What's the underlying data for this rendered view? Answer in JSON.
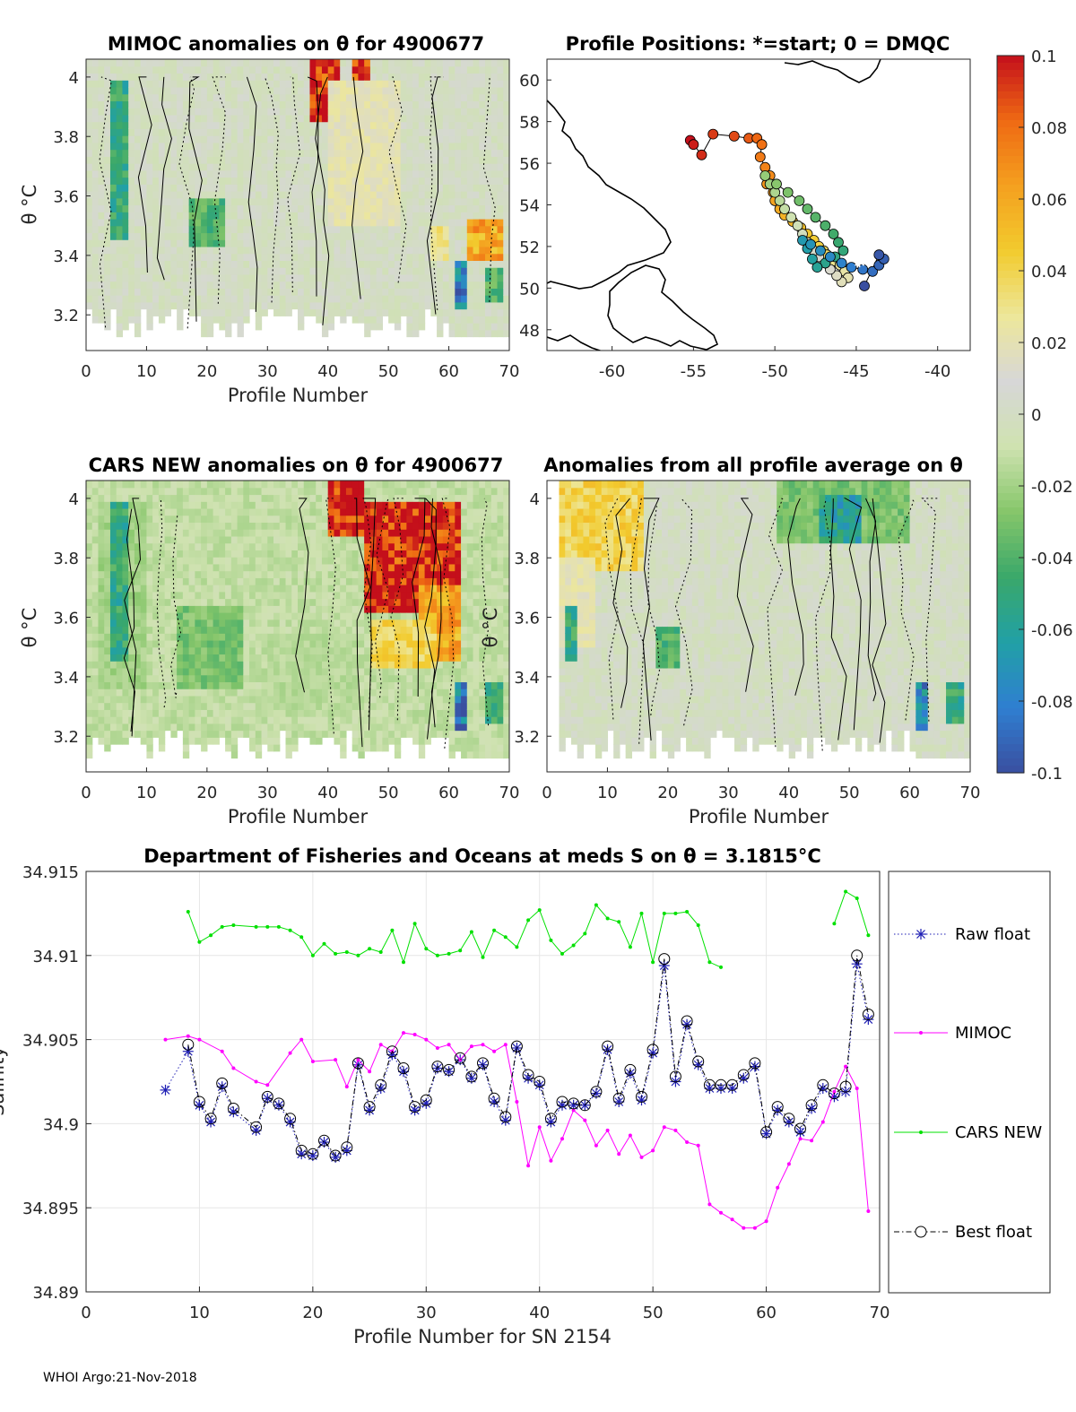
{
  "footer": "WHOI Argo:21-Nov-2018",
  "colorbar": {
    "ticks": [
      "0.1",
      "0.08",
      "0.06",
      "0.04",
      "0.02",
      "0",
      "-0.02",
      "-0.04",
      "-0.06",
      "-0.08",
      "-0.1"
    ],
    "range": [
      -0.1,
      0.1
    ],
    "colors": [
      "#3a4fa0",
      "#2f7fd1",
      "#21a0a6",
      "#3aa86a",
      "#86c66a",
      "#cfe2b0",
      "#d7d7d7",
      "#ede79a",
      "#f2cb2e",
      "#f4a01f",
      "#ef6a13",
      "#c40f1b"
    ]
  },
  "chart_data": [
    {
      "id": "mimoc",
      "type": "heatmap",
      "title": "MIMOC anomalies on θ  for 4900677",
      "xlabel": "Profile Number",
      "ylabel": "θ °C",
      "xlim": [
        0,
        70
      ],
      "ylim": [
        3.08,
        4.06
      ],
      "xticks": [
        "0",
        "10",
        "20",
        "30",
        "40",
        "50",
        "60",
        "70"
      ],
      "yticks": [
        "3.2",
        "3.4",
        "3.6",
        "3.8",
        "4"
      ],
      "blobs": [
        {
          "x": [
            4,
            7
          ],
          "y": [
            3.45,
            4.0
          ],
          "v": -0.05
        },
        {
          "x": [
            17,
            23
          ],
          "y": [
            3.42,
            3.6
          ],
          "v": -0.04
        },
        {
          "x": [
            37,
            42
          ],
          "y": [
            3.85,
            4.05
          ],
          "v": 0.1
        },
        {
          "x": [
            44,
            47
          ],
          "y": [
            3.9,
            4.05
          ],
          "v": 0.1
        },
        {
          "x": [
            40,
            52
          ],
          "y": [
            3.5,
            4.0
          ],
          "v": 0.02
        },
        {
          "x": [
            57,
            60
          ],
          "y": [
            3.38,
            3.5
          ],
          "v": 0.03
        },
        {
          "x": [
            63,
            69
          ],
          "y": [
            3.38,
            3.52
          ],
          "v": 0.06
        },
        {
          "x": [
            61,
            63
          ],
          "y": [
            3.22,
            3.38
          ],
          "v": -0.08
        },
        {
          "x": [
            66,
            69
          ],
          "y": [
            3.25,
            3.35
          ],
          "v": -0.04
        }
      ]
    },
    {
      "id": "map",
      "type": "scatter",
      "title": "Profile Positions: *=start; 0 = DMQC",
      "xlim": [
        -64,
        -38
      ],
      "ylim": [
        47,
        61
      ],
      "xticks": [
        "-60",
        "-55",
        "-50",
        "-45",
        "-40"
      ],
      "yticks": [
        "48",
        "50",
        "52",
        "54",
        "56",
        "58",
        "60"
      ],
      "lon": [
        -55.2,
        -55.0,
        -54.5,
        -53.8,
        -52.5,
        -51.6,
        -51.1,
        -50.8,
        -50.9,
        -50.6,
        -50.3,
        -50.5,
        -50.1,
        -50.0,
        -49.7,
        -49.4,
        -48.9,
        -48.4,
        -48.0,
        -47.6,
        -47.3,
        -47.0,
        -46.8,
        -46.6,
        -46.4,
        -46.0,
        -45.7,
        -45.5,
        -45.9,
        -46.2,
        -46.6,
        -46.9,
        -47.3,
        -47.6,
        -48.0,
        -48.3,
        -48.6,
        -49.0,
        -49.4,
        -49.7,
        -50.0,
        -50.3,
        -50.6,
        -49.9,
        -49.2,
        -48.5,
        -48.0,
        -47.5,
        -46.9,
        -46.4,
        -46.1,
        -45.8,
        -46.3,
        -46.9,
        -47.4,
        -47.7,
        -48.0,
        -48.3,
        -47.8,
        -47.2,
        -46.6,
        -45.9,
        -45.3,
        -44.6,
        -44.0,
        -43.6,
        -43.3,
        -43.6,
        -44.5
      ],
      "lat": [
        57.1,
        56.9,
        56.4,
        57.4,
        57.3,
        57.2,
        57.2,
        56.9,
        56.3,
        55.8,
        55.4,
        55.0,
        54.6,
        54.2,
        53.8,
        53.5,
        53.2,
        52.9,
        52.6,
        52.3,
        52.0,
        51.8,
        51.6,
        51.4,
        51.3,
        51.1,
        50.8,
        50.5,
        50.3,
        50.6,
        50.9,
        51.2,
        51.5,
        51.8,
        52.2,
        52.6,
        53.0,
        53.4,
        53.8,
        54.2,
        54.6,
        55.0,
        55.4,
        55.0,
        54.6,
        54.2,
        53.8,
        53.4,
        53.0,
        52.6,
        52.2,
        51.8,
        51.5,
        51.2,
        51.0,
        51.4,
        51.9,
        52.3,
        52.1,
        51.8,
        51.5,
        51.2,
        51.0,
        50.9,
        50.8,
        51.1,
        51.4,
        51.6,
        50.1
      ],
      "start": {
        "lon": -44.8,
        "lat": 51.3
      }
    },
    {
      "id": "cars",
      "type": "heatmap",
      "title": "CARS NEW anomalies on θ for 4900677",
      "xlabel": "Profile Number",
      "ylabel": "θ °C",
      "xlim": [
        0,
        70
      ],
      "ylim": [
        3.08,
        4.06
      ],
      "xticks": [
        "0",
        "10",
        "20",
        "30",
        "40",
        "50",
        "60",
        "70"
      ],
      "yticks": [
        "3.2",
        "3.4",
        "3.6",
        "3.8",
        "4"
      ],
      "blobs": [
        {
          "x": [
            2,
            10
          ],
          "y": [
            3.35,
            4.0
          ],
          "v": -0.02
        },
        {
          "x": [
            4,
            7
          ],
          "y": [
            3.45,
            4.0
          ],
          "v": -0.05
        },
        {
          "x": [
            15,
            26
          ],
          "y": [
            3.35,
            3.65
          ],
          "v": -0.03
        },
        {
          "x": [
            40,
            46
          ],
          "y": [
            3.88,
            4.06
          ],
          "v": 0.1
        },
        {
          "x": [
            46,
            62
          ],
          "y": [
            3.62,
            4.0
          ],
          "v": 0.1
        },
        {
          "x": [
            55,
            62
          ],
          "y": [
            3.45,
            3.72
          ],
          "v": 0.06
        },
        {
          "x": [
            47,
            58
          ],
          "y": [
            3.42,
            3.6
          ],
          "v": 0.04
        },
        {
          "x": [
            61,
            63
          ],
          "y": [
            3.22,
            3.38
          ],
          "v": -0.08
        },
        {
          "x": [
            66,
            69
          ],
          "y": [
            3.25,
            3.38
          ],
          "v": -0.05
        },
        {
          "x": [
            30,
            45
          ],
          "y": [
            3.3,
            3.55
          ],
          "v": -0.015
        }
      ]
    },
    {
      "id": "avg",
      "type": "heatmap",
      "title": "Anomalies from all profile average on θ",
      "xlabel": "Profile Number",
      "ylabel": "θ °C",
      "xlim": [
        0,
        70
      ],
      "ylim": [
        3.08,
        4.06
      ],
      "xticks": [
        "0",
        "10",
        "20",
        "30",
        "40",
        "50",
        "60",
        "70"
      ],
      "yticks": [
        "3.2",
        "3.4",
        "3.6",
        "3.8",
        "4"
      ],
      "blobs": [
        {
          "x": [
            2,
            16
          ],
          "y": [
            3.75,
            4.06
          ],
          "v": 0.04
        },
        {
          "x": [
            2,
            8
          ],
          "y": [
            3.5,
            3.8
          ],
          "v": 0.02
        },
        {
          "x": [
            3,
            5
          ],
          "y": [
            3.45,
            3.65
          ],
          "v": -0.05
        },
        {
          "x": [
            18,
            22
          ],
          "y": [
            3.42,
            3.58
          ],
          "v": -0.04
        },
        {
          "x": [
            38,
            60
          ],
          "y": [
            3.85,
            4.05
          ],
          "v": -0.03
        },
        {
          "x": [
            45,
            52
          ],
          "y": [
            3.85,
            4.02
          ],
          "v": -0.06
        },
        {
          "x": [
            61,
            63
          ],
          "y": [
            3.22,
            3.38
          ],
          "v": -0.08
        },
        {
          "x": [
            66,
            69
          ],
          "y": [
            3.25,
            3.38
          ],
          "v": -0.05
        }
      ]
    },
    {
      "id": "salinity",
      "type": "line",
      "title": "Department of Fisheries and Oceans at meds S on θ = 3.1815°C",
      "xlabel": "Profile Number for SN 2154",
      "ylabel": "Salinity",
      "xlim": [
        0,
        70
      ],
      "ylim": [
        34.89,
        34.915
      ],
      "xticks": [
        "0",
        "10",
        "20",
        "30",
        "40",
        "50",
        "60",
        "70"
      ],
      "yticks": [
        "34.89",
        "34.895",
        "34.9",
        "34.905",
        "34.91",
        "34.915"
      ],
      "series": [
        {
          "name": "Raw float",
          "color": "#1e1eb4",
          "x": [
            7,
            9,
            10,
            11,
            12,
            13,
            15,
            16,
            17,
            18,
            19,
            20,
            21,
            22,
            23,
            24,
            25,
            26,
            27,
            28,
            29,
            30,
            31,
            32,
            33,
            34,
            35,
            36,
            37,
            38,
            39,
            40,
            41,
            42,
            43,
            44,
            45,
            46,
            47,
            48,
            49,
            50,
            51,
            52,
            53,
            54,
            55,
            56,
            57,
            58,
            59,
            60,
            61,
            62,
            63,
            64,
            65,
            66,
            67,
            68,
            69
          ],
          "y": [
            34.902,
            34.9043,
            34.9011,
            34.9001,
            34.9022,
            34.9007,
            34.8996,
            34.9015,
            34.9011,
            34.9001,
            34.8982,
            34.8981,
            34.8989,
            34.898,
            34.8984,
            34.9035,
            34.9008,
            34.9021,
            34.9041,
            34.9031,
            34.9008,
            34.9012,
            34.9033,
            34.9031,
            34.9038,
            34.9027,
            34.9035,
            34.9013,
            34.9002,
            34.9045,
            34.9027,
            34.9023,
            34.9001,
            34.9011,
            34.9011,
            34.9011,
            34.9018,
            34.9044,
            34.9013,
            34.903,
            34.9014,
            34.9042,
            34.9094,
            34.9025,
            34.9059,
            34.9035,
            34.9021,
            34.9021,
            34.9021,
            34.9027,
            34.9034,
            34.8994,
            34.9008,
            34.9001,
            34.8995,
            34.9009,
            34.9021,
            34.9016,
            34.9019,
            34.9095,
            34.9062
          ]
        },
        {
          "name": "MIMOC",
          "color": "#ff00ff",
          "x": [
            7,
            9,
            10,
            12,
            13,
            15,
            16,
            18,
            19,
            20,
            22,
            23,
            24,
            25,
            26,
            27,
            28,
            29,
            30,
            31,
            32,
            33,
            34,
            35,
            36,
            37,
            38,
            39,
            40,
            41,
            42,
            43,
            44,
            45,
            46,
            47,
            48,
            49,
            50,
            51,
            52,
            53,
            54,
            55,
            56,
            57,
            58,
            59,
            60,
            61,
            62,
            63,
            64,
            65,
            66,
            67,
            68,
            69
          ],
          "y": [
            34.905,
            34.9052,
            34.905,
            34.9043,
            34.9033,
            34.9025,
            34.9023,
            34.9042,
            34.905,
            34.9037,
            34.9038,
            34.9022,
            34.9038,
            34.9031,
            34.9047,
            34.9043,
            34.9054,
            34.9053,
            34.905,
            34.9045,
            34.9047,
            34.9038,
            34.9046,
            34.9047,
            34.9043,
            34.9047,
            34.9013,
            34.8975,
            34.8998,
            34.8978,
            34.8991,
            34.9008,
            34.9002,
            34.8987,
            34.8996,
            34.8982,
            34.8993,
            34.898,
            34.8984,
            34.8998,
            34.8996,
            34.8989,
            34.8987,
            34.8952,
            34.8947,
            34.8943,
            34.8938,
            34.8938,
            34.8942,
            34.8962,
            34.8976,
            34.8991,
            34.899,
            34.9001,
            34.9019,
            34.9034,
            34.9021,
            34.8948
          ]
        },
        {
          "name": "CARS NEW",
          "color": "#00e000",
          "x": [
            9,
            10,
            11,
            12,
            13,
            15,
            16,
            17,
            18,
            19,
            20,
            21,
            22,
            23,
            24,
            25,
            26,
            27,
            28,
            29,
            30,
            31,
            32,
            33,
            34,
            35,
            36,
            37,
            38,
            39,
            40,
            41,
            42,
            43,
            44,
            45,
            46,
            47,
            48,
            49,
            50,
            51,
            52,
            53,
            54,
            55,
            56,
            66,
            67,
            68,
            69
          ],
          "y": [
            34.9126,
            34.9108,
            34.9112,
            34.9117,
            34.9118,
            34.9117,
            34.9117,
            34.9117,
            34.9115,
            34.9111,
            34.91,
            34.9107,
            34.9101,
            34.9102,
            34.91,
            34.9104,
            34.9102,
            34.9115,
            34.9096,
            34.9119,
            34.9104,
            34.91,
            34.9101,
            34.9103,
            34.9114,
            34.9099,
            34.9115,
            34.9111,
            34.9105,
            34.9121,
            34.9127,
            34.9109,
            34.9101,
            34.9106,
            34.9113,
            34.913,
            34.9122,
            34.912,
            34.9105,
            34.9125,
            34.9096,
            34.9125,
            34.9125,
            34.9126,
            34.9118,
            34.9096,
            34.9093,
            34.9119,
            34.9138,
            34.9134,
            34.9112
          ]
        },
        {
          "name": "Best float",
          "color": "#000000",
          "x": [
            9,
            10,
            11,
            12,
            13,
            15,
            16,
            17,
            18,
            19,
            20,
            21,
            22,
            23,
            24,
            25,
            26,
            27,
            28,
            29,
            30,
            31,
            32,
            33,
            34,
            35,
            36,
            37,
            38,
            39,
            40,
            41,
            42,
            43,
            44,
            45,
            46,
            47,
            48,
            49,
            50,
            51,
            52,
            53,
            54,
            55,
            56,
            57,
            58,
            59,
            60,
            61,
            62,
            63,
            64,
            65,
            66,
            67,
            68,
            69
          ],
          "y": [
            34.9047,
            34.9013,
            34.9003,
            34.9024,
            34.9009,
            34.8998,
            34.9016,
            34.9012,
            34.9003,
            34.8984,
            34.8982,
            34.899,
            34.8981,
            34.8986,
            34.9036,
            34.901,
            34.9023,
            34.9043,
            34.9033,
            34.901,
            34.9014,
            34.9034,
            34.9032,
            34.9039,
            34.9028,
            34.9036,
            34.9015,
            34.9004,
            34.9046,
            34.9029,
            34.9025,
            34.9003,
            34.9013,
            34.9012,
            34.9011,
            34.9019,
            34.9046,
            34.9015,
            34.9032,
            34.9016,
            34.9044,
            34.9098,
            34.9028,
            34.9061,
            34.9037,
            34.9023,
            34.9023,
            34.9023,
            34.9029,
            34.9036,
            34.8995,
            34.901,
            34.9003,
            34.8997,
            34.9011,
            34.9023,
            34.9018,
            34.9022,
            34.91,
            34.9065
          ]
        }
      ],
      "legend": [
        "Raw float",
        "MIMOC",
        "CARS NEW",
        "Best float"
      ]
    }
  ]
}
